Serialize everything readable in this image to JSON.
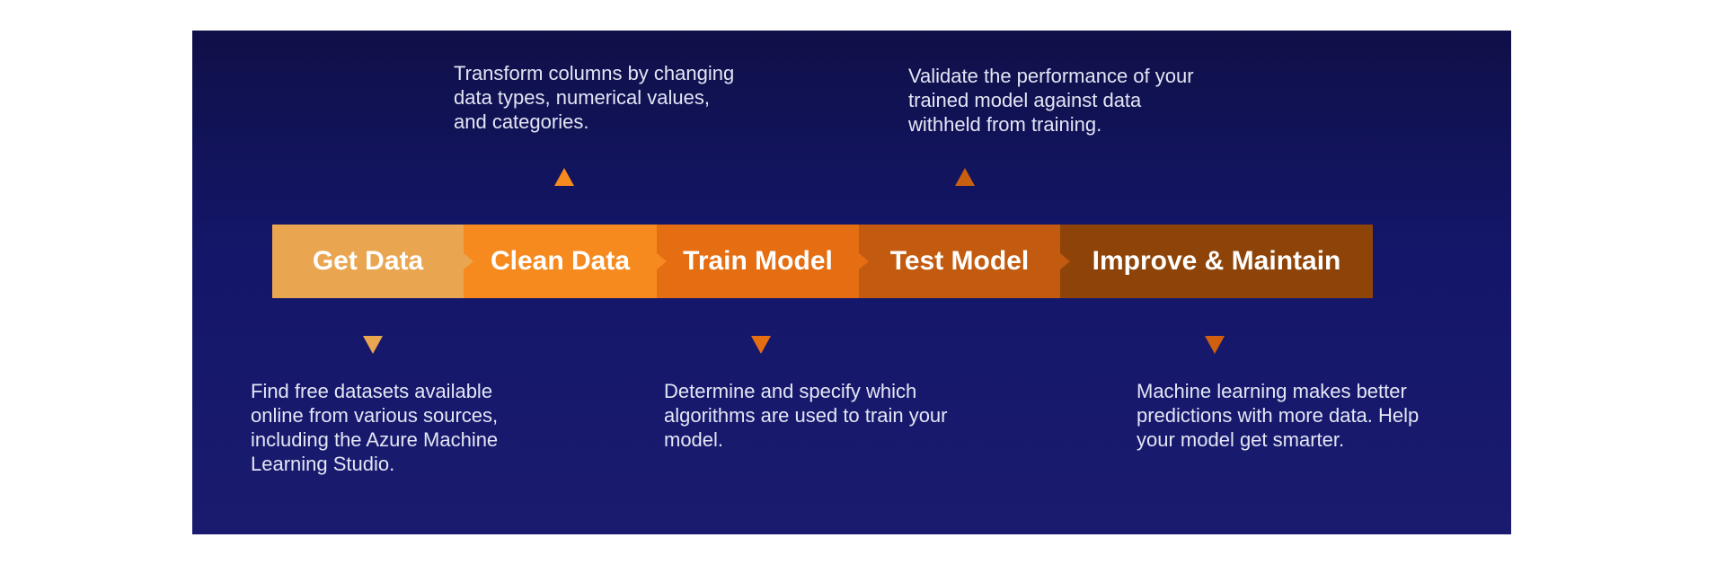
{
  "pipeline": {
    "stages": [
      {
        "label": "Get Data",
        "color": "#eaa550"
      },
      {
        "label": "Clean Data",
        "color": "#f68a1f"
      },
      {
        "label": "Train Model",
        "color": "#e56d12"
      },
      {
        "label": "Test Model",
        "color": "#c25b10"
      },
      {
        "label": "Improve & Maintain",
        "color": "#8e4409"
      }
    ]
  },
  "descriptions": {
    "get_data": "Find free datasets available\nonline from various sources,\nincluding the Azure Machine\nLearning Studio.",
    "clean_data": "Transform columns by changing\ndata types, numerical values,\nand categories.",
    "train_model": "Determine and specify which\nalgorithms are used to train your\nmodel.",
    "test_model": "Validate the performance of your\ntrained model against data\nwithheld from training.",
    "improve_maintain": "Machine learning makes better\npredictions with more data. Help\nyour model get smarter."
  },
  "colors": {
    "background_top": "#0f1048",
    "background_bottom": "#1a1b6f",
    "description_text": "#e3e6f4",
    "marker_get_data": "#eaa550",
    "marker_clean_data": "#f68a1f",
    "marker_train_model": "#e56d12",
    "marker_test_model": "#c25b10",
    "marker_improve_maintain": "#d0600f"
  }
}
